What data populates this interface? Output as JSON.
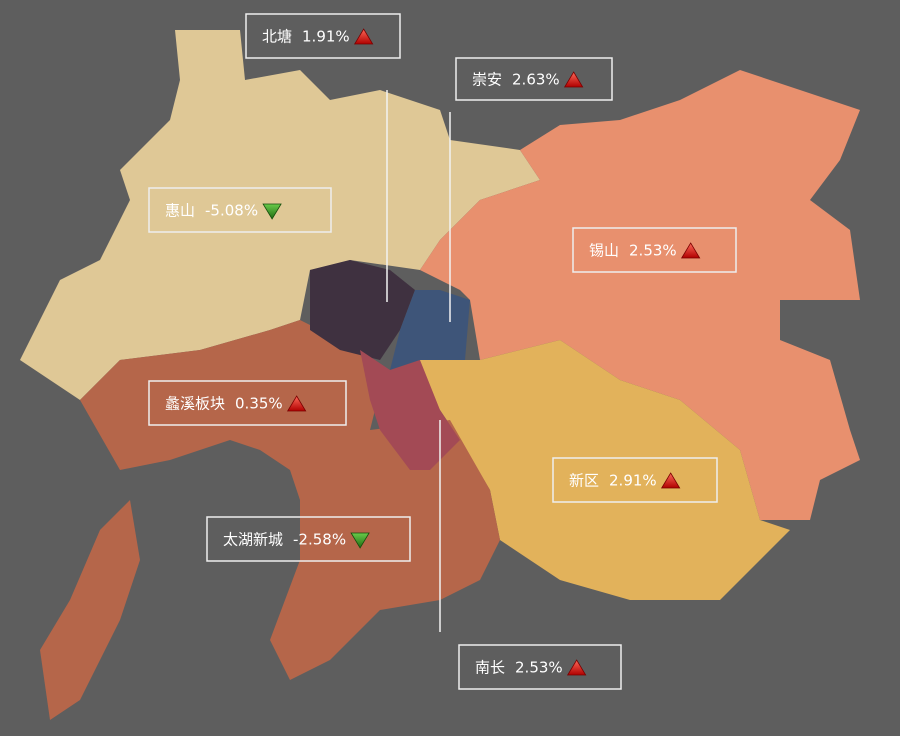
{
  "labels": [
    {
      "name": "北塘",
      "change": "1.91%"
    },
    {
      "name": "崇安",
      "change": "2.63%"
    },
    {
      "name": "惠山",
      "change": "-5.08%"
    },
    {
      "name": "锡山",
      "change": "2.53%"
    },
    {
      "name": "蠡溪板块",
      "change": "0.35%"
    },
    {
      "name": "新区",
      "change": "2.91%"
    },
    {
      "name": "太湖新城",
      "change": "-2.58%"
    },
    {
      "name": "南长",
      "change": "2.53%"
    }
  ]
}
